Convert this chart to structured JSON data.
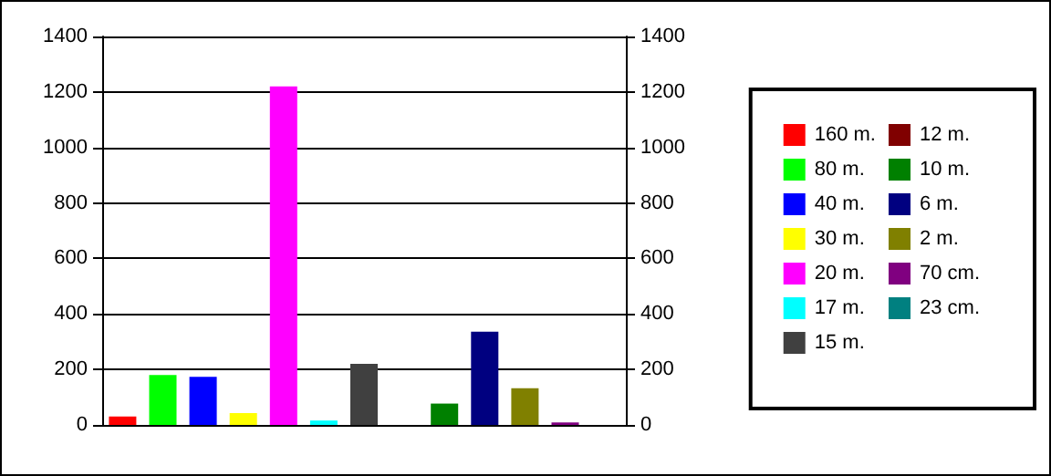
{
  "chart_data": {
    "type": "bar",
    "categories": [
      null
    ],
    "series": [
      {
        "name": "160 m.",
        "color": "#ff0000",
        "values": [
          30
        ]
      },
      {
        "name": "80 m.",
        "color": "#00ff00",
        "values": [
          180
        ]
      },
      {
        "name": "40 m.",
        "color": "#0000ff",
        "values": [
          173
        ]
      },
      {
        "name": "30 m.",
        "color": "#ffff00",
        "values": [
          43
        ]
      },
      {
        "name": "20 m.",
        "color": "#ff00ff",
        "values": [
          1220
        ]
      },
      {
        "name": "17 m.",
        "color": "#00ffff",
        "values": [
          16
        ]
      },
      {
        "name": "15 m.",
        "color": "#404040",
        "values": [
          220
        ]
      },
      {
        "name": "12 m.",
        "color": "#800000",
        "values": [
          0
        ]
      },
      {
        "name": "10 m.",
        "color": "#008000",
        "values": [
          77
        ]
      },
      {
        "name": "6 m.",
        "color": "#000080",
        "values": [
          336
        ]
      },
      {
        "name": "2 m.",
        "color": "#808000",
        "values": [
          132
        ]
      },
      {
        "name": "70 cm.",
        "color": "#800080",
        "values": [
          9
        ]
      },
      {
        "name": "23 cm.",
        "color": "#008080",
        "values": [
          0
        ]
      }
    ],
    "ylim": [
      0,
      1400
    ],
    "yticks": [
      0,
      200,
      400,
      600,
      800,
      1000,
      1200,
      1400
    ],
    "y2lim": [
      0,
      1400
    ],
    "y2ticks": [
      0,
      200,
      400,
      600,
      800,
      1000,
      1200,
      1400
    ],
    "grid": "y",
    "legend": "right"
  }
}
